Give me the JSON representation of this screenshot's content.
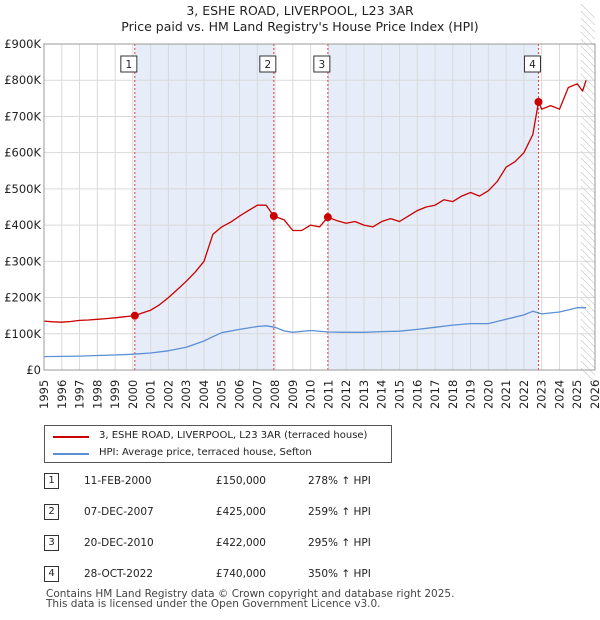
{
  "title_line1": "3, ESHE ROAD, LIVERPOOL, L23 3AR",
  "title_line2": "Price paid vs. HM Land Registry's House Price Index (HPI)",
  "colors": {
    "price_line": "#cc0000",
    "hpi_line": "#5b8fd6",
    "sale_shading": "#e6ecf8",
    "sale_vline": "#dd4444",
    "grid": "#d9d9d9"
  },
  "legend": {
    "price_label": "3, ESHE ROAD, LIVERPOOL, L23 3AR (terraced house)",
    "hpi_label": "HPI: Average price, terraced house, Sefton"
  },
  "sales": [
    {
      "num": "1",
      "date": "11-FEB-2000",
      "price": "£150,000",
      "hpi": "278% ↑ HPI"
    },
    {
      "num": "2",
      "date": "07-DEC-2007",
      "price": "£425,000",
      "hpi": "259% ↑ HPI"
    },
    {
      "num": "3",
      "date": "20-DEC-2010",
      "price": "£422,000",
      "hpi": "295% ↑ HPI"
    },
    {
      "num": "4",
      "date": "28-OCT-2022",
      "price": "£740,000",
      "hpi": "350% ↑ HPI"
    }
  ],
  "footer_line1": "Contains HM Land Registry data © Crown copyright and database right 2025.",
  "footer_line2": "This data is licensed under the Open Government Licence v3.0.",
  "chart_data": {
    "type": "line",
    "title": "3, ESHE ROAD, LIVERPOOL, L23 3AR",
    "subtitle": "Price paid vs. HM Land Registry's House Price Index (HPI)",
    "xlim": [
      1995,
      2026
    ],
    "ylim": [
      0,
      900000
    ],
    "x_ticks": [
      1995,
      1996,
      1997,
      1998,
      1999,
      2000,
      2001,
      2002,
      2003,
      2004,
      2005,
      2006,
      2007,
      2008,
      2009,
      2010,
      2011,
      2012,
      2013,
      2014,
      2015,
      2016,
      2017,
      2018,
      2019,
      2020,
      2021,
      2022,
      2023,
      2024,
      2025,
      2026
    ],
    "y_ticks": [
      0,
      100000,
      200000,
      300000,
      400000,
      500000,
      600000,
      700000,
      800000,
      900000
    ],
    "y_tick_labels": [
      "£0",
      "£100K",
      "£200K",
      "£300K",
      "£400K",
      "£500K",
      "£600K",
      "£700K",
      "£800K",
      "£900K"
    ],
    "projection_start": 2025.2,
    "series": [
      {
        "name": "3, ESHE ROAD, LIVERPOOL, L23 3AR (terraced house)",
        "x": [
          1995.0,
          1995.5,
          1996.0,
          1996.5,
          1997.0,
          1997.5,
          1998.0,
          1998.5,
          1999.0,
          1999.5,
          2000.1,
          2000.5,
          2001.0,
          2001.5,
          2002.0,
          2002.5,
          2003.0,
          2003.5,
          2004.0,
          2004.5,
          2005.0,
          2005.5,
          2006.0,
          2006.5,
          2007.0,
          2007.5,
          2007.93,
          2008.5,
          2009.0,
          2009.5,
          2010.0,
          2010.5,
          2010.97,
          2011.5,
          2012.0,
          2012.5,
          2013.0,
          2013.5,
          2014.0,
          2014.5,
          2015.0,
          2015.5,
          2016.0,
          2016.5,
          2017.0,
          2017.5,
          2018.0,
          2018.5,
          2019.0,
          2019.5,
          2020.0,
          2020.5,
          2021.0,
          2021.5,
          2022.0,
          2022.5,
          2022.82,
          2023.0,
          2023.5,
          2024.0,
          2024.5,
          2025.0,
          2025.3,
          2025.5
        ],
        "values": [
          135000,
          133000,
          132000,
          134000,
          137000,
          138000,
          140000,
          142000,
          144000,
          147000,
          150000,
          157000,
          165000,
          180000,
          200000,
          222000,
          245000,
          270000,
          300000,
          375000,
          395000,
          408000,
          425000,
          440000,
          455000,
          455000,
          425000,
          415000,
          385000,
          385000,
          400000,
          395000,
          422000,
          412000,
          405000,
          410000,
          400000,
          395000,
          410000,
          418000,
          410000,
          425000,
          440000,
          450000,
          455000,
          470000,
          465000,
          480000,
          490000,
          480000,
          495000,
          520000,
          560000,
          575000,
          600000,
          650000,
          740000,
          720000,
          730000,
          720000,
          780000,
          790000,
          770000,
          800000
        ]
      },
      {
        "name": "HPI: Average price, terraced house, Sefton",
        "x": [
          1995.0,
          1996.0,
          1997.0,
          1998.0,
          1999.0,
          2000.0,
          2001.0,
          2002.0,
          2003.0,
          2004.0,
          2004.5,
          2005.0,
          2006.0,
          2007.0,
          2007.5,
          2008.0,
          2008.5,
          2009.0,
          2010.0,
          2011.0,
          2012.0,
          2013.0,
          2014.0,
          2015.0,
          2016.0,
          2017.0,
          2018.0,
          2019.0,
          2020.0,
          2021.0,
          2022.0,
          2022.5,
          2023.0,
          2024.0,
          2025.0,
          2025.5
        ],
        "values": [
          37000,
          37500,
          38500,
          40000,
          41500,
          43500,
          47000,
          53000,
          63000,
          80000,
          92000,
          103000,
          112000,
          120000,
          122000,
          118000,
          108000,
          104000,
          109000,
          105000,
          104000,
          104000,
          106000,
          107000,
          112000,
          118000,
          124000,
          128000,
          128000,
          140000,
          152000,
          162000,
          155000,
          160000,
          172000,
          172000
        ]
      }
    ],
    "annotations": [
      {
        "label": "1",
        "x": 2000.11,
        "y": 150000
      },
      {
        "label": "2",
        "x": 2007.93,
        "y": 425000
      },
      {
        "label": "3",
        "x": 2010.97,
        "y": 422000
      },
      {
        "label": "4",
        "x": 2022.82,
        "y": 740000
      }
    ]
  }
}
